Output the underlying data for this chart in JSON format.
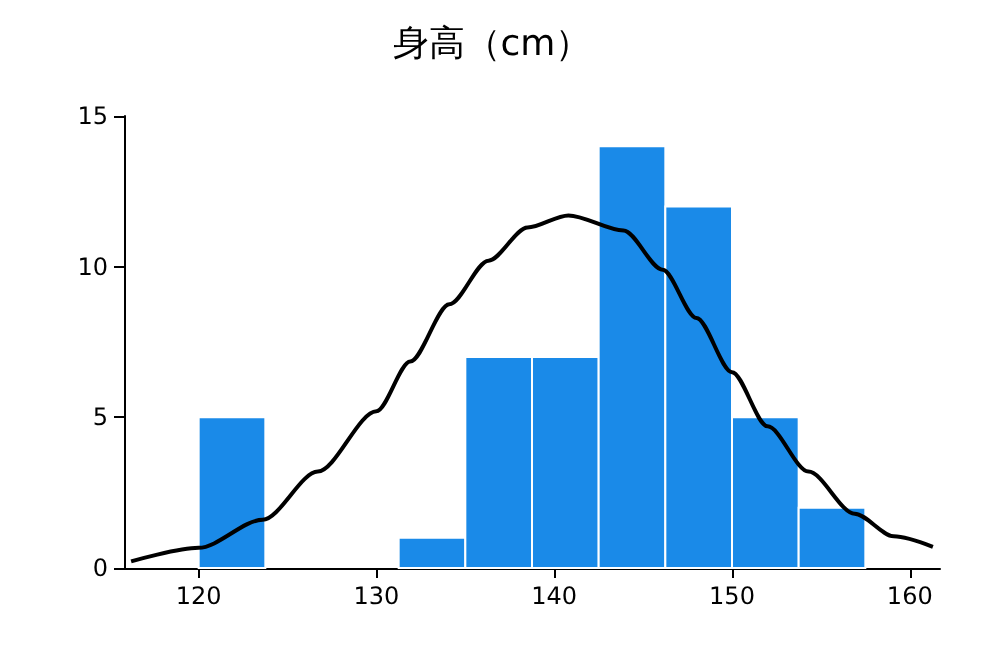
{
  "chart_data": {
    "type": "histogram",
    "title": "身高（cm）",
    "bins": [
      120,
      123.75,
      127.5,
      131.25,
      135,
      138.75,
      142.5,
      146.25,
      150,
      153.75,
      157.5
    ],
    "values": [
      5,
      0,
      0,
      1,
      7,
      7,
      14,
      12,
      5,
      2
    ],
    "color": "#1a8ae8",
    "series": [
      {
        "type": "line",
        "color": "#000000",
        "x": [
          116.2,
          120,
          123.6,
          126.7,
          130,
          131.9,
          134.1,
          136.3,
          138.5,
          140.8,
          143.9,
          146.1,
          148,
          150,
          152,
          154.3,
          156.9,
          159.1,
          161.3
        ],
        "values": [
          0.22,
          0.67,
          1.6,
          3.2,
          5.2,
          6.85,
          8.75,
          10.2,
          11.3,
          11.7,
          11.2,
          9.9,
          8.3,
          6.5,
          4.7,
          3.2,
          1.8,
          1.05,
          0.7
        ]
      }
    ],
    "xlim": [
      115.8,
      161.7
    ],
    "xticks": [
      120,
      130,
      140,
      150,
      160
    ],
    "ylim": [
      0,
      15
    ],
    "yticks": [
      0,
      5,
      10,
      15
    ],
    "grid": false,
    "marker": "none",
    "line_style": "solid"
  }
}
